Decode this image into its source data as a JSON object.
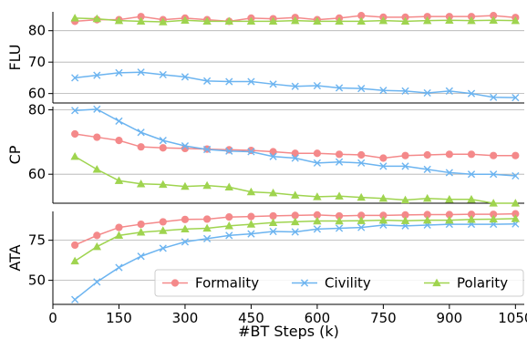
{
  "chart_data": {
    "type": "line",
    "xlabel": "#BT Steps (k)",
    "x": [
      50,
      100,
      150,
      200,
      250,
      300,
      350,
      400,
      450,
      500,
      550,
      600,
      650,
      700,
      750,
      800,
      850,
      900,
      950,
      1000,
      1050
    ],
    "xticks": [
      0,
      150,
      300,
      450,
      600,
      750,
      900,
      1050
    ],
    "xlim": [
      0,
      1070
    ],
    "legend": {
      "placement": "bottom-right",
      "entries": [
        "Formality",
        "Civility",
        "Polarity"
      ]
    },
    "grid": "horizontal",
    "colors": {
      "Formality": "#f4898a",
      "Civility": "#6cb4f0",
      "Polarity": "#9fd44f"
    },
    "markers": {
      "Formality": "circle",
      "Civility": "x",
      "Polarity": "triangle"
    },
    "panels": [
      {
        "ylabel": "FLU",
        "ylim": [
          57,
          86
        ],
        "yticks": [
          60,
          70,
          80
        ],
        "series": [
          {
            "name": "Formality",
            "values": [
              83.0,
              83.5,
              83.5,
              84.5,
              83.5,
              84.0,
              83.5,
              83.0,
              84.0,
              83.8,
              84.2,
              83.5,
              84.0,
              84.8,
              84.3,
              84.3,
              84.5,
              84.5,
              84.5,
              84.8,
              84.2
            ]
          },
          {
            "name": "Civility",
            "values": [
              65.0,
              65.8,
              66.6,
              66.8,
              66.0,
              65.3,
              64.0,
              63.8,
              63.8,
              63.0,
              62.3,
              62.5,
              61.8,
              61.6,
              61.0,
              60.8,
              60.2,
              60.8,
              60.0,
              58.8,
              58.7
            ]
          },
          {
            "name": "Polarity",
            "values": [
              84.0,
              83.8,
              83.2,
              83.0,
              82.8,
              83.3,
              83.0,
              83.0,
              83.0,
              83.0,
              83.2,
              83.0,
              83.0,
              83.0,
              83.2,
              83.0,
              83.2,
              83.3,
              83.2,
              83.3,
              83.2
            ]
          }
        ]
      },
      {
        "ylabel": "CP",
        "ylim": [
          51,
          81
        ],
        "yticks": [
          60,
          80
        ],
        "series": [
          {
            "name": "Formality",
            "values": [
              72.5,
              71.5,
              70.5,
              68.5,
              68.2,
              68.0,
              67.8,
              67.6,
              67.4,
              67.0,
              66.5,
              66.5,
              66.2,
              66.0,
              65.0,
              65.8,
              66.0,
              66.2,
              66.2,
              65.8,
              65.8
            ]
          },
          {
            "name": "Civility",
            "values": [
              79.8,
              80.2,
              76.5,
              73.0,
              70.5,
              68.8,
              67.7,
              67.2,
              67.0,
              65.5,
              65.0,
              63.5,
              63.8,
              63.5,
              62.5,
              62.5,
              61.5,
              60.5,
              60.0,
              60.0,
              59.5
            ]
          },
          {
            "name": "Polarity",
            "values": [
              65.5,
              61.5,
              58.0,
              57.0,
              56.8,
              56.2,
              56.5,
              56.0,
              54.5,
              54.2,
              53.5,
              53.0,
              53.2,
              52.8,
              52.5,
              52.0,
              52.5,
              52.2,
              52.2,
              51.0,
              51.0
            ]
          }
        ]
      },
      {
        "ylabel": "ATA",
        "ylim": [
          35,
          93
        ],
        "yticks": [
          50,
          75
        ],
        "series": [
          {
            "name": "Formality",
            "values": [
              72.0,
              78.0,
              83.0,
              85.0,
              86.5,
              88.0,
              88.2,
              89.5,
              89.8,
              90.2,
              90.5,
              90.8,
              90.2,
              90.5,
              90.5,
              90.8,
              91.0,
              91.0,
              91.2,
              91.2,
              91.5
            ]
          },
          {
            "name": "Civility",
            "values": [
              38.0,
              49.0,
              58.0,
              65.0,
              70.0,
              74.0,
              76.0,
              78.0,
              79.0,
              80.5,
              80.2,
              82.0,
              82.5,
              83.0,
              84.5,
              84.0,
              84.5,
              85.0,
              85.0,
              85.0,
              85.2
            ]
          },
          {
            "name": "Polarity",
            "values": [
              62.0,
              71.0,
              78.0,
              80.0,
              81.0,
              82.0,
              82.5,
              84.0,
              85.0,
              86.0,
              86.5,
              87.0,
              87.0,
              87.2,
              87.5,
              87.2,
              87.5,
              87.5,
              88.0,
              88.2,
              88.5
            ]
          }
        ]
      }
    ]
  }
}
